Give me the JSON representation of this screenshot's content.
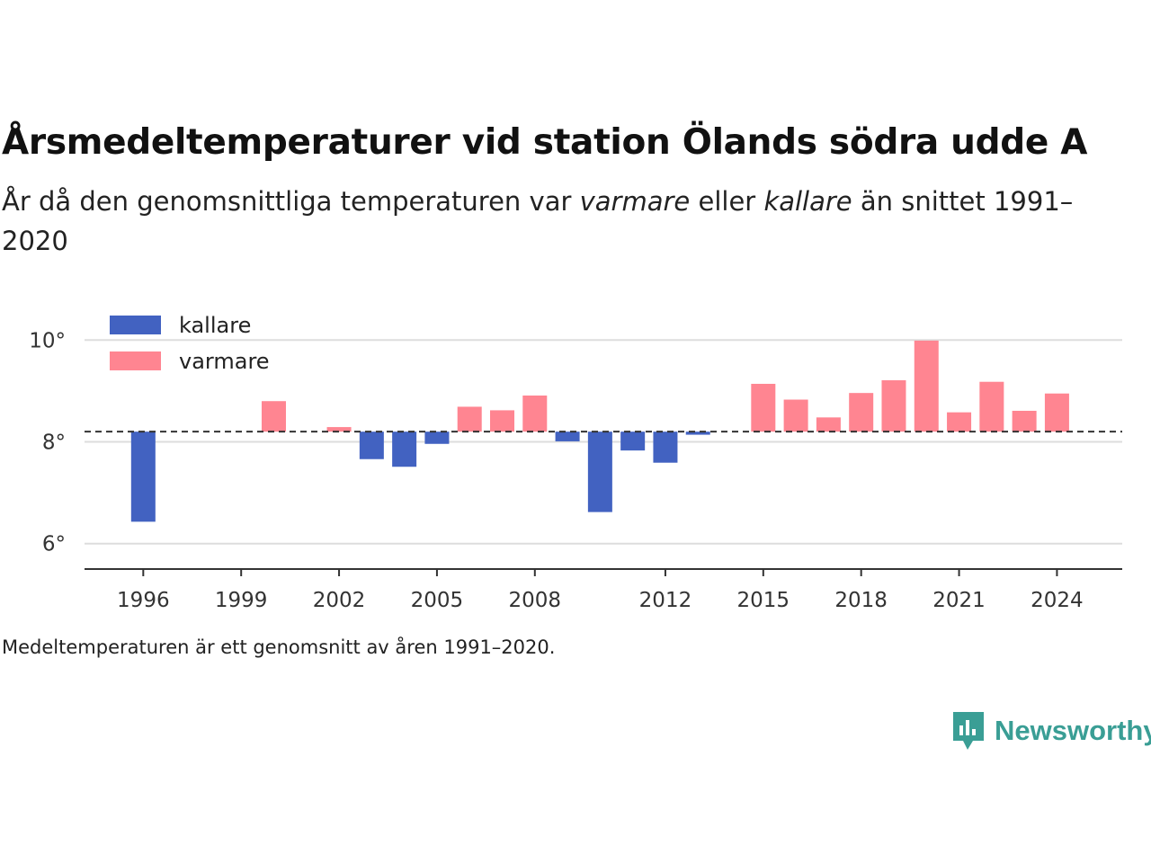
{
  "title": "Årsmedeltemperaturer vid station Ölands södra udde A",
  "subtitle": {
    "part1": "År då den genomsnittliga temperaturen var ",
    "warmer_word": "varmare",
    "part2": " eller ",
    "colder_word": "kallare",
    "part3": " än snittet 1991–2020"
  },
  "footnote": "Medeltemperaturen är ett genomsnitt av åren 1991–2020.",
  "brand": {
    "name": "Newsworthy",
    "icon": "newsworthy-logo-icon"
  },
  "colors": {
    "colder": "#4262c1",
    "warmer": "#ff8591",
    "baseline": "#333333",
    "grid": "#dddddd",
    "axis": "#333333"
  },
  "chart_data": {
    "type": "bar",
    "baseline": 8.2,
    "ylim": [
      5.5,
      10.5
    ],
    "yticks": [
      {
        "value": 6,
        "label": "6°"
      },
      {
        "value": 8,
        "label": "8°"
      },
      {
        "value": 10,
        "label": "10°"
      }
    ],
    "xlim": [
      1994.2,
      2026
    ],
    "xticks": [
      {
        "value": 1996,
        "label": "1996"
      },
      {
        "value": 1999,
        "label": "1999"
      },
      {
        "value": 2002,
        "label": "2002"
      },
      {
        "value": 2005,
        "label": "2005"
      },
      {
        "value": 2008,
        "label": "2008"
      },
      {
        "value": 2012,
        "label": "2012"
      },
      {
        "value": 2015,
        "label": "2015"
      },
      {
        "value": 2018,
        "label": "2018"
      },
      {
        "value": 2021,
        "label": "2021"
      },
      {
        "value": 2024,
        "label": "2024"
      }
    ],
    "legend": {
      "placement": "top-left",
      "items": [
        {
          "key": "colder",
          "label": "kallare"
        },
        {
          "key": "warmer",
          "label": "varmare"
        }
      ]
    },
    "grid": true,
    "series": [
      {
        "year": 1996,
        "value": 6.43
      },
      {
        "year": 2000,
        "value": 8.8
      },
      {
        "year": 2002,
        "value": 8.29
      },
      {
        "year": 2003,
        "value": 7.66
      },
      {
        "year": 2004,
        "value": 7.51
      },
      {
        "year": 2005,
        "value": 7.96
      },
      {
        "year": 2006,
        "value": 8.69
      },
      {
        "year": 2007,
        "value": 8.62
      },
      {
        "year": 2008,
        "value": 8.91
      },
      {
        "year": 2009,
        "value": 8.01
      },
      {
        "year": 2010,
        "value": 6.62
      },
      {
        "year": 2011,
        "value": 7.83
      },
      {
        "year": 2012,
        "value": 7.59
      },
      {
        "year": 2013,
        "value": 8.14
      },
      {
        "year": 2015,
        "value": 9.14
      },
      {
        "year": 2016,
        "value": 8.83
      },
      {
        "year": 2017,
        "value": 8.48
      },
      {
        "year": 2018,
        "value": 8.96
      },
      {
        "year": 2019,
        "value": 9.21
      },
      {
        "year": 2020,
        "value": 9.99
      },
      {
        "year": 2021,
        "value": 8.58
      },
      {
        "year": 2022,
        "value": 9.18
      },
      {
        "year": 2023,
        "value": 8.61
      },
      {
        "year": 2024,
        "value": 8.95
      }
    ]
  }
}
